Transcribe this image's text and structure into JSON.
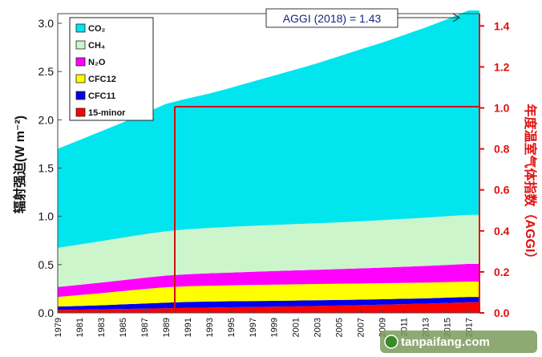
{
  "chart_data": {
    "type": "area",
    "stacked": true,
    "x": [
      1979,
      1981,
      1983,
      1985,
      1987,
      1989,
      1991,
      1993,
      1995,
      1997,
      1999,
      2001,
      2003,
      2005,
      2007,
      2009,
      2011,
      2013,
      2015,
      2017
    ],
    "x_tick_labels": [
      "1979",
      "1981",
      "1983",
      "1985",
      "1987",
      "1989",
      "1991",
      "1993",
      "1995",
      "1997",
      "1999",
      "2001",
      "2003",
      "2005",
      "2007",
      "2009",
      "2011",
      "2013",
      "2015",
      "2017"
    ],
    "x_range": [
      1979,
      2018
    ],
    "series": [
      {
        "name": "15-minor",
        "color": "#ff0000",
        "values": [
          0.03,
          0.033,
          0.036,
          0.04,
          0.044,
          0.048,
          0.052,
          0.055,
          0.058,
          0.061,
          0.064,
          0.068,
          0.072,
          0.076,
          0.08,
          0.085,
          0.09,
          0.096,
          0.103,
          0.11
        ]
      },
      {
        "name": "CFC11",
        "color": "#0000ee",
        "values": [
          0.035,
          0.039,
          0.043,
          0.048,
          0.053,
          0.058,
          0.061,
          0.062,
          0.062,
          0.062,
          0.061,
          0.06,
          0.059,
          0.058,
          0.057,
          0.056,
          0.056,
          0.055,
          0.055,
          0.055
        ]
      },
      {
        "name": "CFC12",
        "color": "#ffff00",
        "values": [
          0.1,
          0.113,
          0.125,
          0.138,
          0.15,
          0.16,
          0.163,
          0.165,
          0.166,
          0.167,
          0.168,
          0.168,
          0.168,
          0.168,
          0.167,
          0.166,
          0.165,
          0.163,
          0.161,
          0.159
        ]
      },
      {
        "name": "N₂O",
        "color": "#ff00ff",
        "values": [
          0.103,
          0.106,
          0.11,
          0.113,
          0.117,
          0.12,
          0.124,
          0.128,
          0.132,
          0.136,
          0.14,
          0.144,
          0.148,
          0.152,
          0.157,
          0.162,
          0.167,
          0.172,
          0.178,
          0.184
        ]
      },
      {
        "name": "CH₄",
        "color": "#ccf5cc",
        "values": [
          0.406,
          0.418,
          0.429,
          0.44,
          0.45,
          0.46,
          0.466,
          0.47,
          0.474,
          0.476,
          0.478,
          0.48,
          0.482,
          0.484,
          0.488,
          0.492,
          0.496,
          0.5,
          0.504,
          0.508
        ]
      },
      {
        "name": "CO₂",
        "color": "#00e5ee",
        "values": [
          1.026,
          1.081,
          1.137,
          1.193,
          1.251,
          1.319,
          1.355,
          1.391,
          1.439,
          1.494,
          1.547,
          1.601,
          1.657,
          1.719,
          1.781,
          1.839,
          1.904,
          1.97,
          2.041,
          2.117
        ]
      }
    ],
    "legend_order": [
      "CO₂",
      "CH₄",
      "N₂O",
      "CFC12",
      "CFC11",
      "15-minor"
    ],
    "legend_placement": "top-left",
    "ylabel": "辐射强迫(W m⁻²)",
    "ylim": [
      0,
      3.1
    ],
    "y_ticks": [
      "0.0",
      "0.5",
      "1.0",
      "1.5",
      "2.0",
      "2.5",
      "3.0"
    ],
    "y2label": "年度温室气体指数（AGGI）",
    "y2lim": [
      0,
      1.46
    ],
    "y2_ticks": [
      "0.0",
      "0.2",
      "0.4",
      "0.6",
      "0.8",
      "1.0",
      "1.2",
      "1.4"
    ],
    "reference": {
      "year": 1990,
      "aggi": 1.0
    },
    "annotation": "AGGI (2018) = 1.43",
    "grid": false
  },
  "watermark": "tanpaifang.com",
  "colors": {
    "axis_right": "#e01010",
    "reference_line": "#cc1111",
    "annotation_text": "#1a237e"
  }
}
